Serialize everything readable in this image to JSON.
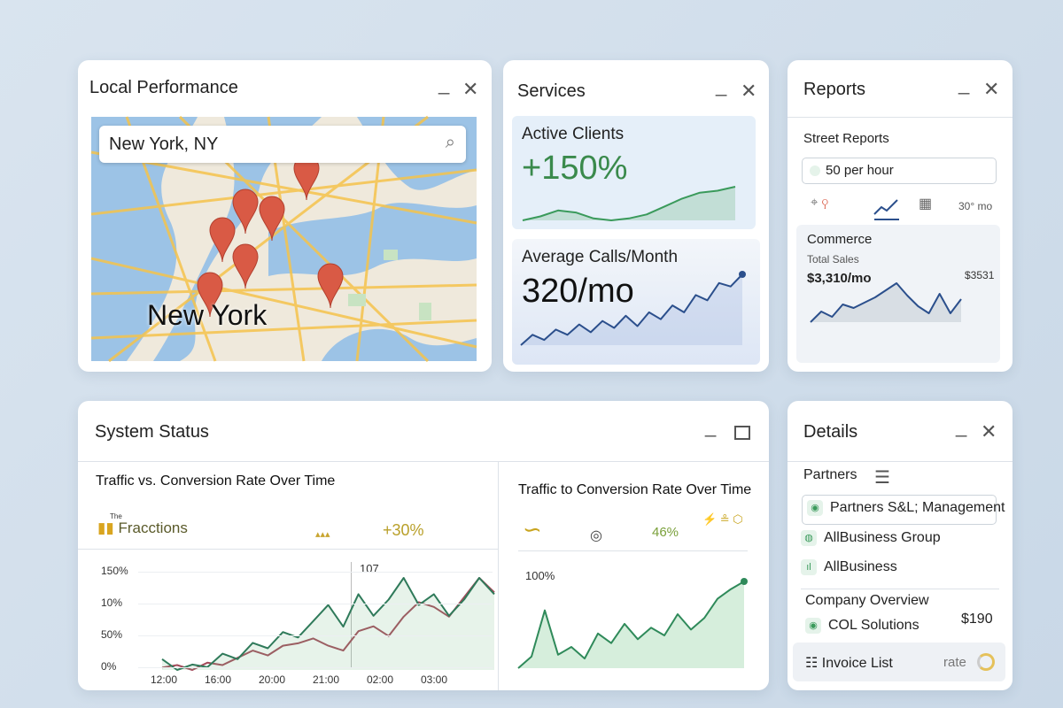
{
  "panels": {
    "local": {
      "title": "Local Performance",
      "search": "New York, NY",
      "map_label": "New York"
    },
    "services": {
      "title": "Services",
      "active": {
        "label": "Active Clients",
        "value": "+150%",
        "trend": [
          20,
          22,
          25,
          24,
          21,
          20,
          21,
          23,
          27,
          31,
          34,
          35,
          37
        ]
      },
      "calls": {
        "label": "Average Calls/Month",
        "value": "320/mo",
        "trend": [
          18,
          30,
          24,
          36,
          30,
          42,
          33,
          46,
          38,
          52,
          40,
          56,
          48,
          64,
          56,
          76,
          70,
          90,
          86,
          100
        ]
      }
    },
    "reports": {
      "title": "Reports",
      "section": "Street Reports",
      "rate": "50 per hour",
      "period": "30° mo",
      "commerce": {
        "title": "Commerce",
        "label": "Total Sales",
        "value": "$3,310/mo",
        "alt": "$3531",
        "trend": [
          30,
          42,
          36,
          50,
          46,
          52,
          58,
          66,
          74,
          60,
          48,
          40,
          62,
          40,
          56
        ]
      }
    },
    "system": {
      "title": "System Status",
      "left": {
        "title": "Traffic vs. Conversion Rate Over Time",
        "brand_small": "The",
        "brand": "Fracctions",
        "change": "+30%",
        "marker": "107",
        "yticks": [
          "150%",
          "10%",
          "50%",
          "0%"
        ],
        "xticks": [
          "12:00",
          "16:00",
          "20:00",
          "21:00",
          "02:00",
          "03:00"
        ],
        "traffic": [
          6,
          2,
          4,
          3,
          8,
          6,
          12,
          10,
          16,
          14,
          20,
          26,
          18,
          30,
          22,
          28,
          36,
          26,
          30,
          22,
          28,
          36,
          30
        ],
        "conversion": [
          3,
          4,
          2,
          5,
          4,
          7,
          10,
          8,
          12,
          13,
          15,
          12,
          10,
          18,
          20,
          16,
          24,
          30,
          28,
          24,
          32,
          40,
          34
        ]
      },
      "right": {
        "title": "Traffic to Conversion Rate Over Time",
        "pct": "46%",
        "ylabel": "100%",
        "trend": [
          10,
          22,
          70,
          24,
          32,
          20,
          46,
          36,
          56,
          40,
          52,
          44,
          66,
          50,
          62,
          82,
          92,
          100
        ]
      }
    },
    "details": {
      "title": "Details",
      "partners_label": "Partners",
      "partners": [
        "Partners S&L; Management",
        "AllBusiness Group",
        "AllBusiness"
      ],
      "company_label": "Company Overview",
      "company": "COL Solutions",
      "amount": "$190",
      "invoice": "Invoice List",
      "rate": "rate"
    }
  }
}
